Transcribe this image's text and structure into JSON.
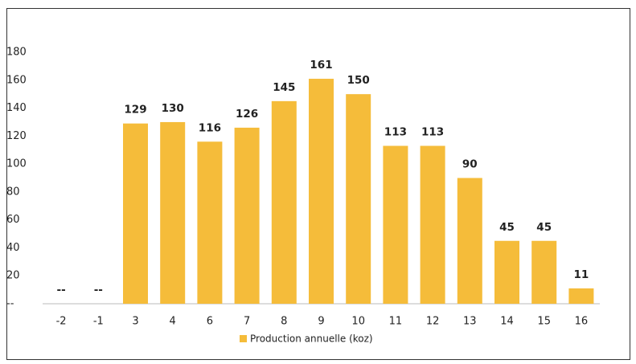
{
  "chart_data": {
    "type": "bar",
    "categories": [
      "-2",
      "-1",
      "3",
      "4",
      "6",
      "7",
      "8",
      "9",
      "10",
      "11",
      "12",
      "13",
      "14",
      "15",
      "16"
    ],
    "series": [
      {
        "name": "Production annuelle (koz)",
        "color": "#f5bc3a",
        "values": [
          null,
          null,
          129,
          130,
          116,
          126,
          145,
          161,
          150,
          113,
          113,
          90,
          45,
          45,
          11
        ],
        "value_labels": [
          "--",
          "--",
          "129",
          "130",
          "116",
          "126",
          "145",
          "161",
          "150",
          "113",
          "113",
          "90",
          "45",
          "45",
          "11"
        ]
      }
    ],
    "ylim": [
      0,
      180
    ],
    "yticks": [
      {
        "value": 0,
        "label": "--"
      },
      20,
      40,
      60,
      80,
      100,
      120,
      140,
      160,
      180
    ],
    "legend": "bottom"
  }
}
